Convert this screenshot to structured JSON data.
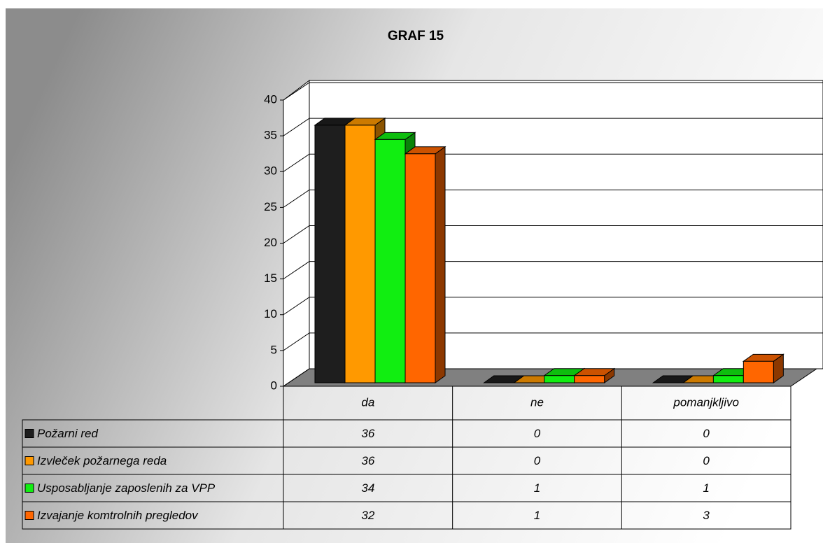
{
  "chart_data": {
    "type": "bar3d",
    "title": "GRAF 15",
    "categories": [
      "da",
      "ne",
      "pomanjkljivo"
    ],
    "series": [
      {
        "name": "Požarni red",
        "color": "#1e1e1e",
        "values": [
          36,
          0,
          0
        ]
      },
      {
        "name": "Izvleček požarnega reda",
        "color": "#ff9900",
        "values": [
          36,
          0,
          0
        ]
      },
      {
        "name": "Usposabljanje zaposlenih za VPP",
        "color": "#11ee11",
        "values": [
          34,
          1,
          1
        ]
      },
      {
        "name": "Izvajanje komtrolnih pregledov",
        "color": "#ff6600",
        "values": [
          32,
          1,
          3
        ]
      }
    ],
    "ylim": [
      0,
      40
    ],
    "yticks": [
      0,
      5,
      10,
      15,
      20,
      25,
      30,
      35,
      40
    ],
    "grid": true
  }
}
